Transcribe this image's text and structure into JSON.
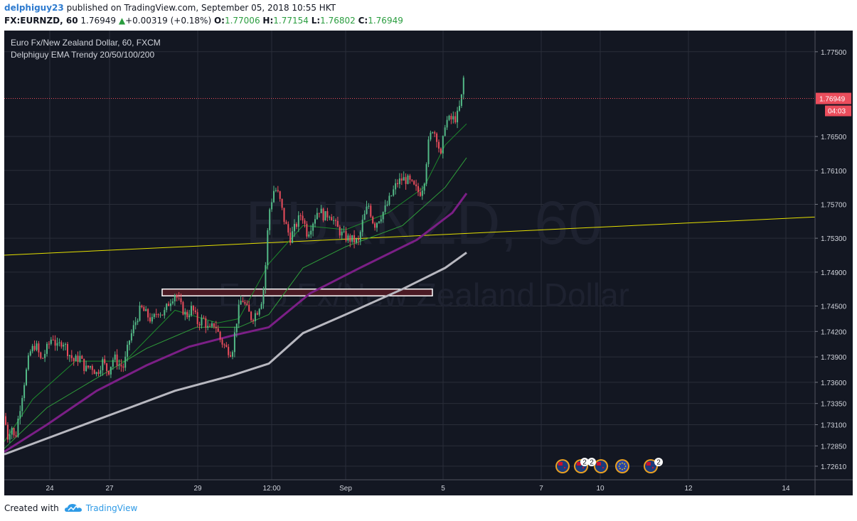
{
  "header": {
    "author": "delphiguy23",
    "published_text": "published on TradingView.com, September 05, 2018 10:55 HKT",
    "symbol": "FX:EURNZD, 60",
    "last": "1.76949",
    "change": "+0.00319 (+0.18%)",
    "open_label": "O:",
    "open": "1.77006",
    "high_label": "H:",
    "high": "1.77154",
    "low_label": "L:",
    "low": "1.76802",
    "close_label": "C:",
    "close": "1.76949"
  },
  "legend": {
    "title": "Euro Fx/New Zealand Dollar, 60, FXCM",
    "indicator": "Delphiguy EMA Trendy 20/50/100/200"
  },
  "watermark": {
    "line1": "EURNZD, 60",
    "line2": "Euro Fx/New Zealand Dollar"
  },
  "price_tag": {
    "price": "1.76949",
    "countdown": "04:03"
  },
  "footer": {
    "created_with": "Created with",
    "brand": "TradingView"
  },
  "colors": {
    "background": "#131722",
    "grid": "#2a2e39",
    "up": "#53b987",
    "down": "#eb4d5c",
    "ema20": "#1d8a2c",
    "ema50": "#2f9d3a",
    "ema100": "#7b1f86",
    "ema200": "#b8b8c0",
    "trendline": "#e5e000",
    "zone": "#4a1a24"
  },
  "event_icons": [
    "nz-flag-icon",
    "nz-flag-icon",
    "nz-flag-icon",
    "eu-flag-icon",
    "nz-flag-icon"
  ],
  "event_badges": [
    "2",
    "2",
    "2"
  ],
  "chart_data": {
    "type": "candlestick",
    "title": "Euro Fx/New Zealand Dollar, 60, FXCM",
    "ylim": [
      1.7245,
      1.7775
    ],
    "y_ticks": [
      "1.77500",
      "1.76500",
      "1.76100",
      "1.75700",
      "1.75300",
      "1.74900",
      "1.74500",
      "1.74200",
      "1.73900",
      "1.73600",
      "1.73350",
      "1.73100",
      "1.72850",
      "1.72610"
    ],
    "x_ticks": [
      "24",
      "27",
      "29",
      "12:00",
      "Sep",
      "5",
      "7",
      "10",
      "12",
      "14"
    ],
    "ohlc_path": [
      [
        0,
        1.732
      ],
      [
        5,
        1.7295
      ],
      [
        10,
        1.731
      ],
      [
        15,
        1.729
      ],
      [
        20,
        1.732
      ],
      [
        28,
        1.736
      ],
      [
        36,
        1.7395
      ],
      [
        44,
        1.7405
      ],
      [
        52,
        1.7385
      ],
      [
        60,
        1.74
      ],
      [
        68,
        1.7415
      ],
      [
        74,
        1.74
      ],
      [
        82,
        1.741
      ],
      [
        90,
        1.7395
      ],
      [
        98,
        1.7385
      ],
      [
        106,
        1.739
      ],
      [
        114,
        1.7375
      ],
      [
        122,
        1.738
      ],
      [
        130,
        1.737
      ],
      [
        138,
        1.7385
      ],
      [
        146,
        1.7372
      ],
      [
        154,
        1.739
      ],
      [
        162,
        1.738
      ],
      [
        168,
        1.7378
      ],
      [
        176,
        1.741
      ],
      [
        184,
        1.743
      ],
      [
        192,
        1.7448
      ],
      [
        200,
        1.744
      ],
      [
        208,
        1.7432
      ],
      [
        216,
        1.7445
      ],
      [
        224,
        1.744
      ],
      [
        232,
        1.7455
      ],
      [
        240,
        1.7465
      ],
      [
        248,
        1.745
      ],
      [
        256,
        1.7438
      ],
      [
        264,
        1.7448
      ],
      [
        272,
        1.743
      ],
      [
        280,
        1.7435
      ],
      [
        288,
        1.742
      ],
      [
        296,
        1.743
      ],
      [
        304,
        1.741
      ],
      [
        312,
        1.74
      ],
      [
        320,
        1.7395
      ],
      [
        328,
        1.744
      ],
      [
        334,
        1.746
      ],
      [
        340,
        1.7448
      ],
      [
        348,
        1.7435
      ],
      [
        356,
        1.7445
      ],
      [
        362,
        1.7458
      ],
      [
        366,
        1.748
      ],
      [
        372,
        1.756
      ],
      [
        380,
        1.759
      ],
      [
        386,
        1.758
      ],
      [
        394,
        1.755
      ],
      [
        402,
        1.753
      ],
      [
        410,
        1.7545
      ],
      [
        418,
        1.756
      ],
      [
        426,
        1.7535
      ],
      [
        434,
        1.755
      ],
      [
        442,
        1.7565
      ],
      [
        450,
        1.7555
      ],
      [
        458,
        1.756
      ],
      [
        466,
        1.7545
      ],
      [
        474,
        1.7535
      ],
      [
        482,
        1.753
      ],
      [
        490,
        1.7528
      ],
      [
        498,
        1.7525
      ],
      [
        504,
        1.755
      ],
      [
        512,
        1.757
      ],
      [
        520,
        1.7545
      ],
      [
        528,
        1.7555
      ],
      [
        536,
        1.7565
      ],
      [
        544,
        1.758
      ],
      [
        552,
        1.7595
      ],
      [
        560,
        1.76
      ],
      [
        568,
        1.7598
      ],
      [
        576,
        1.759
      ],
      [
        584,
        1.7583
      ],
      [
        590,
        1.7595
      ],
      [
        596,
        1.764
      ],
      [
        602,
        1.766
      ],
      [
        608,
        1.765
      ],
      [
        614,
        1.7625
      ],
      [
        620,
        1.7668
      ],
      [
        628,
        1.767
      ],
      [
        636,
        1.7672
      ],
      [
        642,
        1.769
      ],
      [
        646,
        1.772
      ],
      [
        650,
        1.7695
      ]
    ],
    "ema_series": [
      {
        "id": "ema20",
        "points": [
          [
            0,
            1.729
          ],
          [
            40,
            1.734
          ],
          [
            100,
            1.7385
          ],
          [
            170,
            1.7385
          ],
          [
            240,
            1.7445
          ],
          [
            300,
            1.743
          ],
          [
            330,
            1.7435
          ],
          [
            372,
            1.75
          ],
          [
            420,
            1.7545
          ],
          [
            480,
            1.754
          ],
          [
            540,
            1.756
          ],
          [
            590,
            1.759
          ],
          [
            620,
            1.764
          ],
          [
            650,
            1.7665
          ]
        ]
      },
      {
        "id": "ema50",
        "points": [
          [
            0,
            1.7282
          ],
          [
            60,
            1.733
          ],
          [
            130,
            1.7365
          ],
          [
            200,
            1.74
          ],
          [
            270,
            1.7425
          ],
          [
            330,
            1.7425
          ],
          [
            372,
            1.744
          ],
          [
            420,
            1.7495
          ],
          [
            480,
            1.752
          ],
          [
            560,
            1.7545
          ],
          [
            620,
            1.759
          ],
          [
            650,
            1.7625
          ]
        ]
      },
      {
        "id": "ema100",
        "points": [
          [
            0,
            1.7278
          ],
          [
            60,
            1.731
          ],
          [
            130,
            1.735
          ],
          [
            200,
            1.738
          ],
          [
            260,
            1.7402
          ],
          [
            320,
            1.7415
          ],
          [
            372,
            1.7425
          ],
          [
            430,
            1.7465
          ],
          [
            500,
            1.7495
          ],
          [
            580,
            1.7528
          ],
          [
            630,
            1.756
          ],
          [
            650,
            1.7583
          ]
        ]
      },
      {
        "id": "ema200",
        "points": [
          [
            0,
            1.7275
          ],
          [
            80,
            1.73
          ],
          [
            160,
            1.7325
          ],
          [
            240,
            1.735
          ],
          [
            320,
            1.7368
          ],
          [
            372,
            1.7382
          ],
          [
            420,
            1.7418
          ],
          [
            480,
            1.744
          ],
          [
            560,
            1.747
          ],
          [
            620,
            1.7495
          ],
          [
            650,
            1.7513
          ]
        ]
      }
    ],
    "trendline": {
      "from": [
        0,
        1.751
      ],
      "to": [
        1140,
        1.7555
      ]
    },
    "zone": {
      "x_from": 222,
      "x_to": 602,
      "y_top": 1.747,
      "y_bottom": 1.7462
    }
  }
}
